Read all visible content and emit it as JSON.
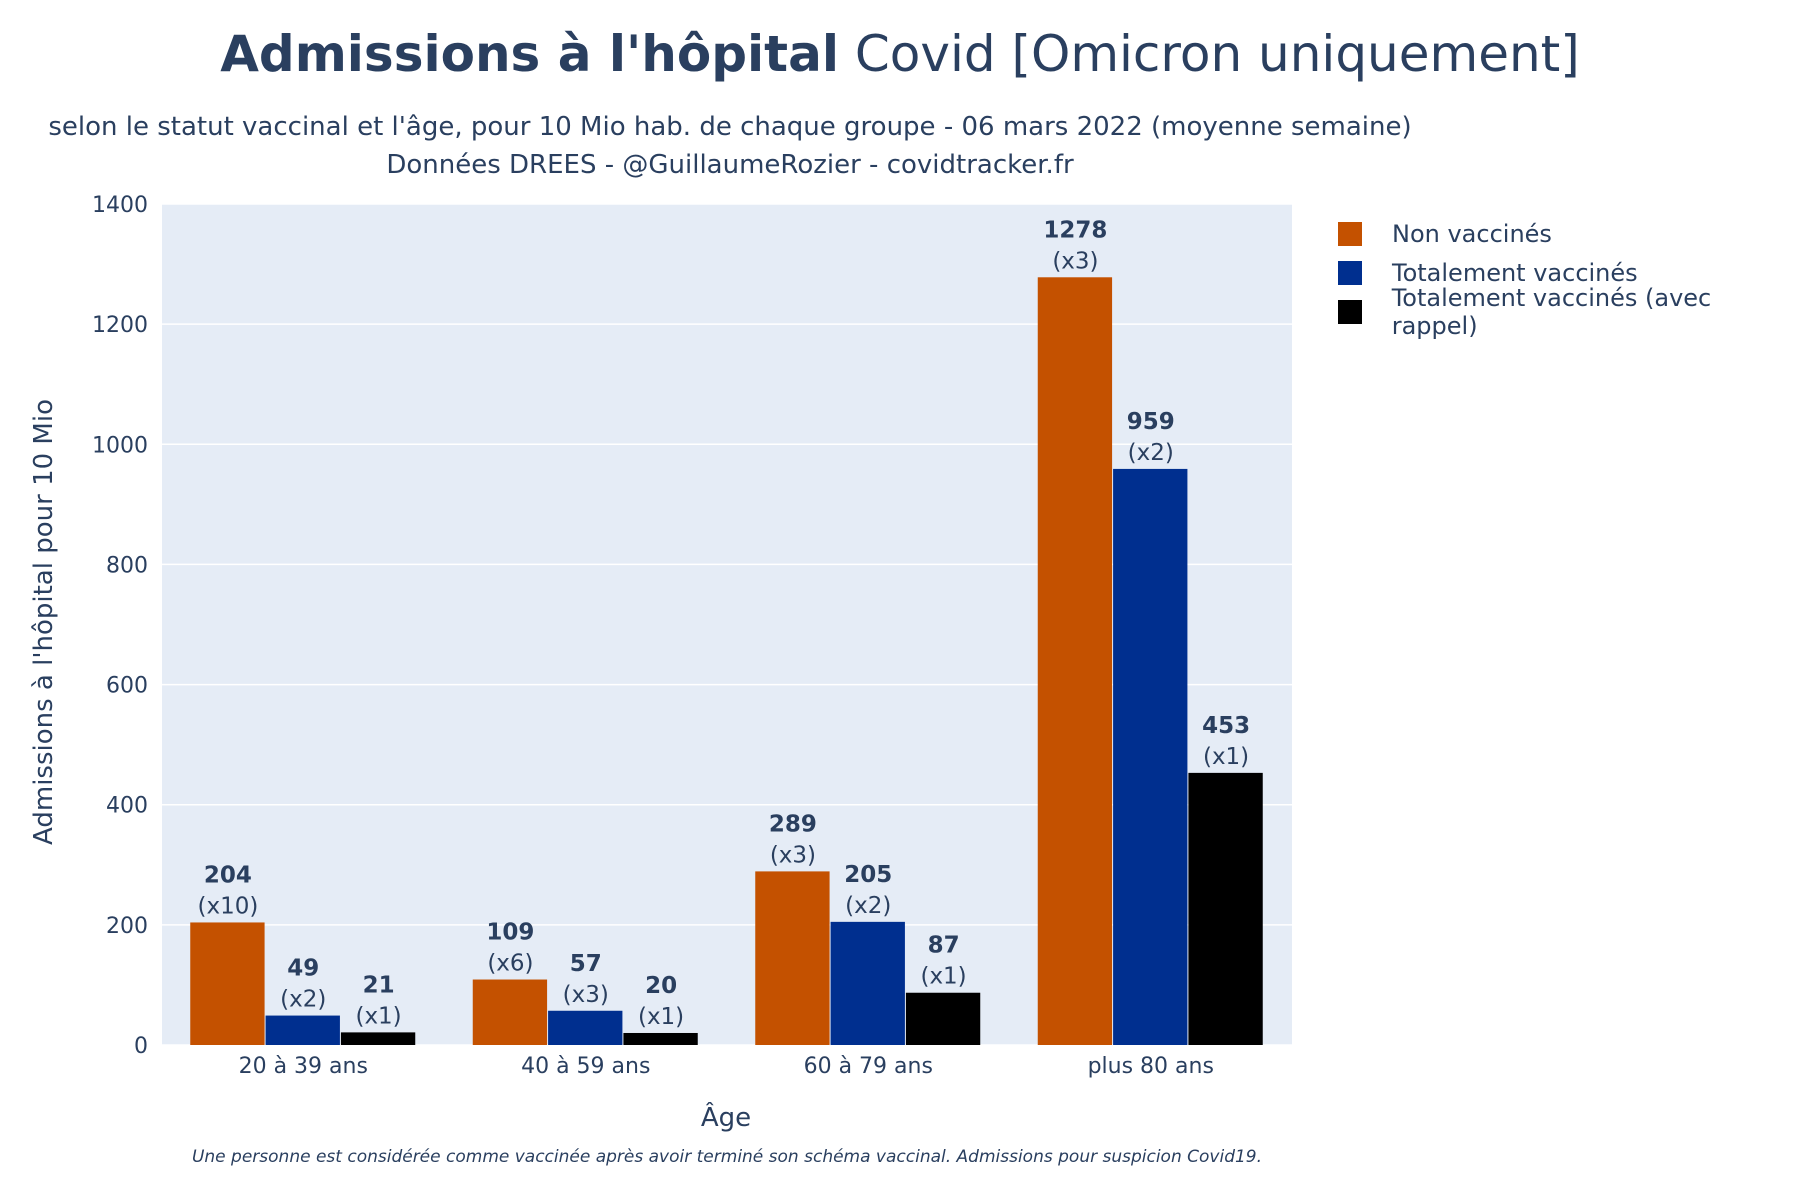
{
  "title": {
    "bold": "Admissions à l'hôpital",
    "rest": " Covid [Omicron uniquement]"
  },
  "subtitle": {
    "line1": "selon le statut vaccinal et l'âge, pour 10 Mio hab. de chaque groupe - 06 mars 2022 (moyenne semaine)",
    "line2": "Données DREES - @GuillaumeRozier - covidtracker.fr"
  },
  "footnote": "Une personne est considérée comme vaccinée après avoir terminé son schéma vaccinal. Admissions pour suspicion Covid19.",
  "chart_data": {
    "type": "bar",
    "categories": [
      "20 à 39 ans",
      "40 à 59 ans",
      "60 à 79 ans",
      "plus 80 ans"
    ],
    "series": [
      {
        "name": "Non vaccinés",
        "color": "#c45100",
        "values": [
          204,
          109,
          289,
          1278
        ],
        "ratios": [
          "(x10)",
          "(x6)",
          "(x3)",
          "(x3)"
        ]
      },
      {
        "name": "Totalement vaccinés",
        "color": "#002f8f",
        "values": [
          49,
          57,
          205,
          959
        ],
        "ratios": [
          "(x2)",
          "(x3)",
          "(x2)",
          "(x2)"
        ]
      },
      {
        "name": "Totalement vaccinés (avec rappel)",
        "color": "#000000",
        "values": [
          21,
          20,
          87,
          453
        ],
        "ratios": [
          "(x1)",
          "(x1)",
          "(x1)",
          "(x1)"
        ]
      }
    ],
    "xlabel": "Âge",
    "ylabel": "Admissions à l'hôpital pour 10 Mio",
    "ylim": [
      0,
      1400
    ],
    "yticks": [
      0,
      200,
      400,
      600,
      800,
      1000,
      1200,
      1400
    ],
    "grid": true,
    "legend_position": "top-right",
    "plot_bg": "#e5ecf6"
  }
}
